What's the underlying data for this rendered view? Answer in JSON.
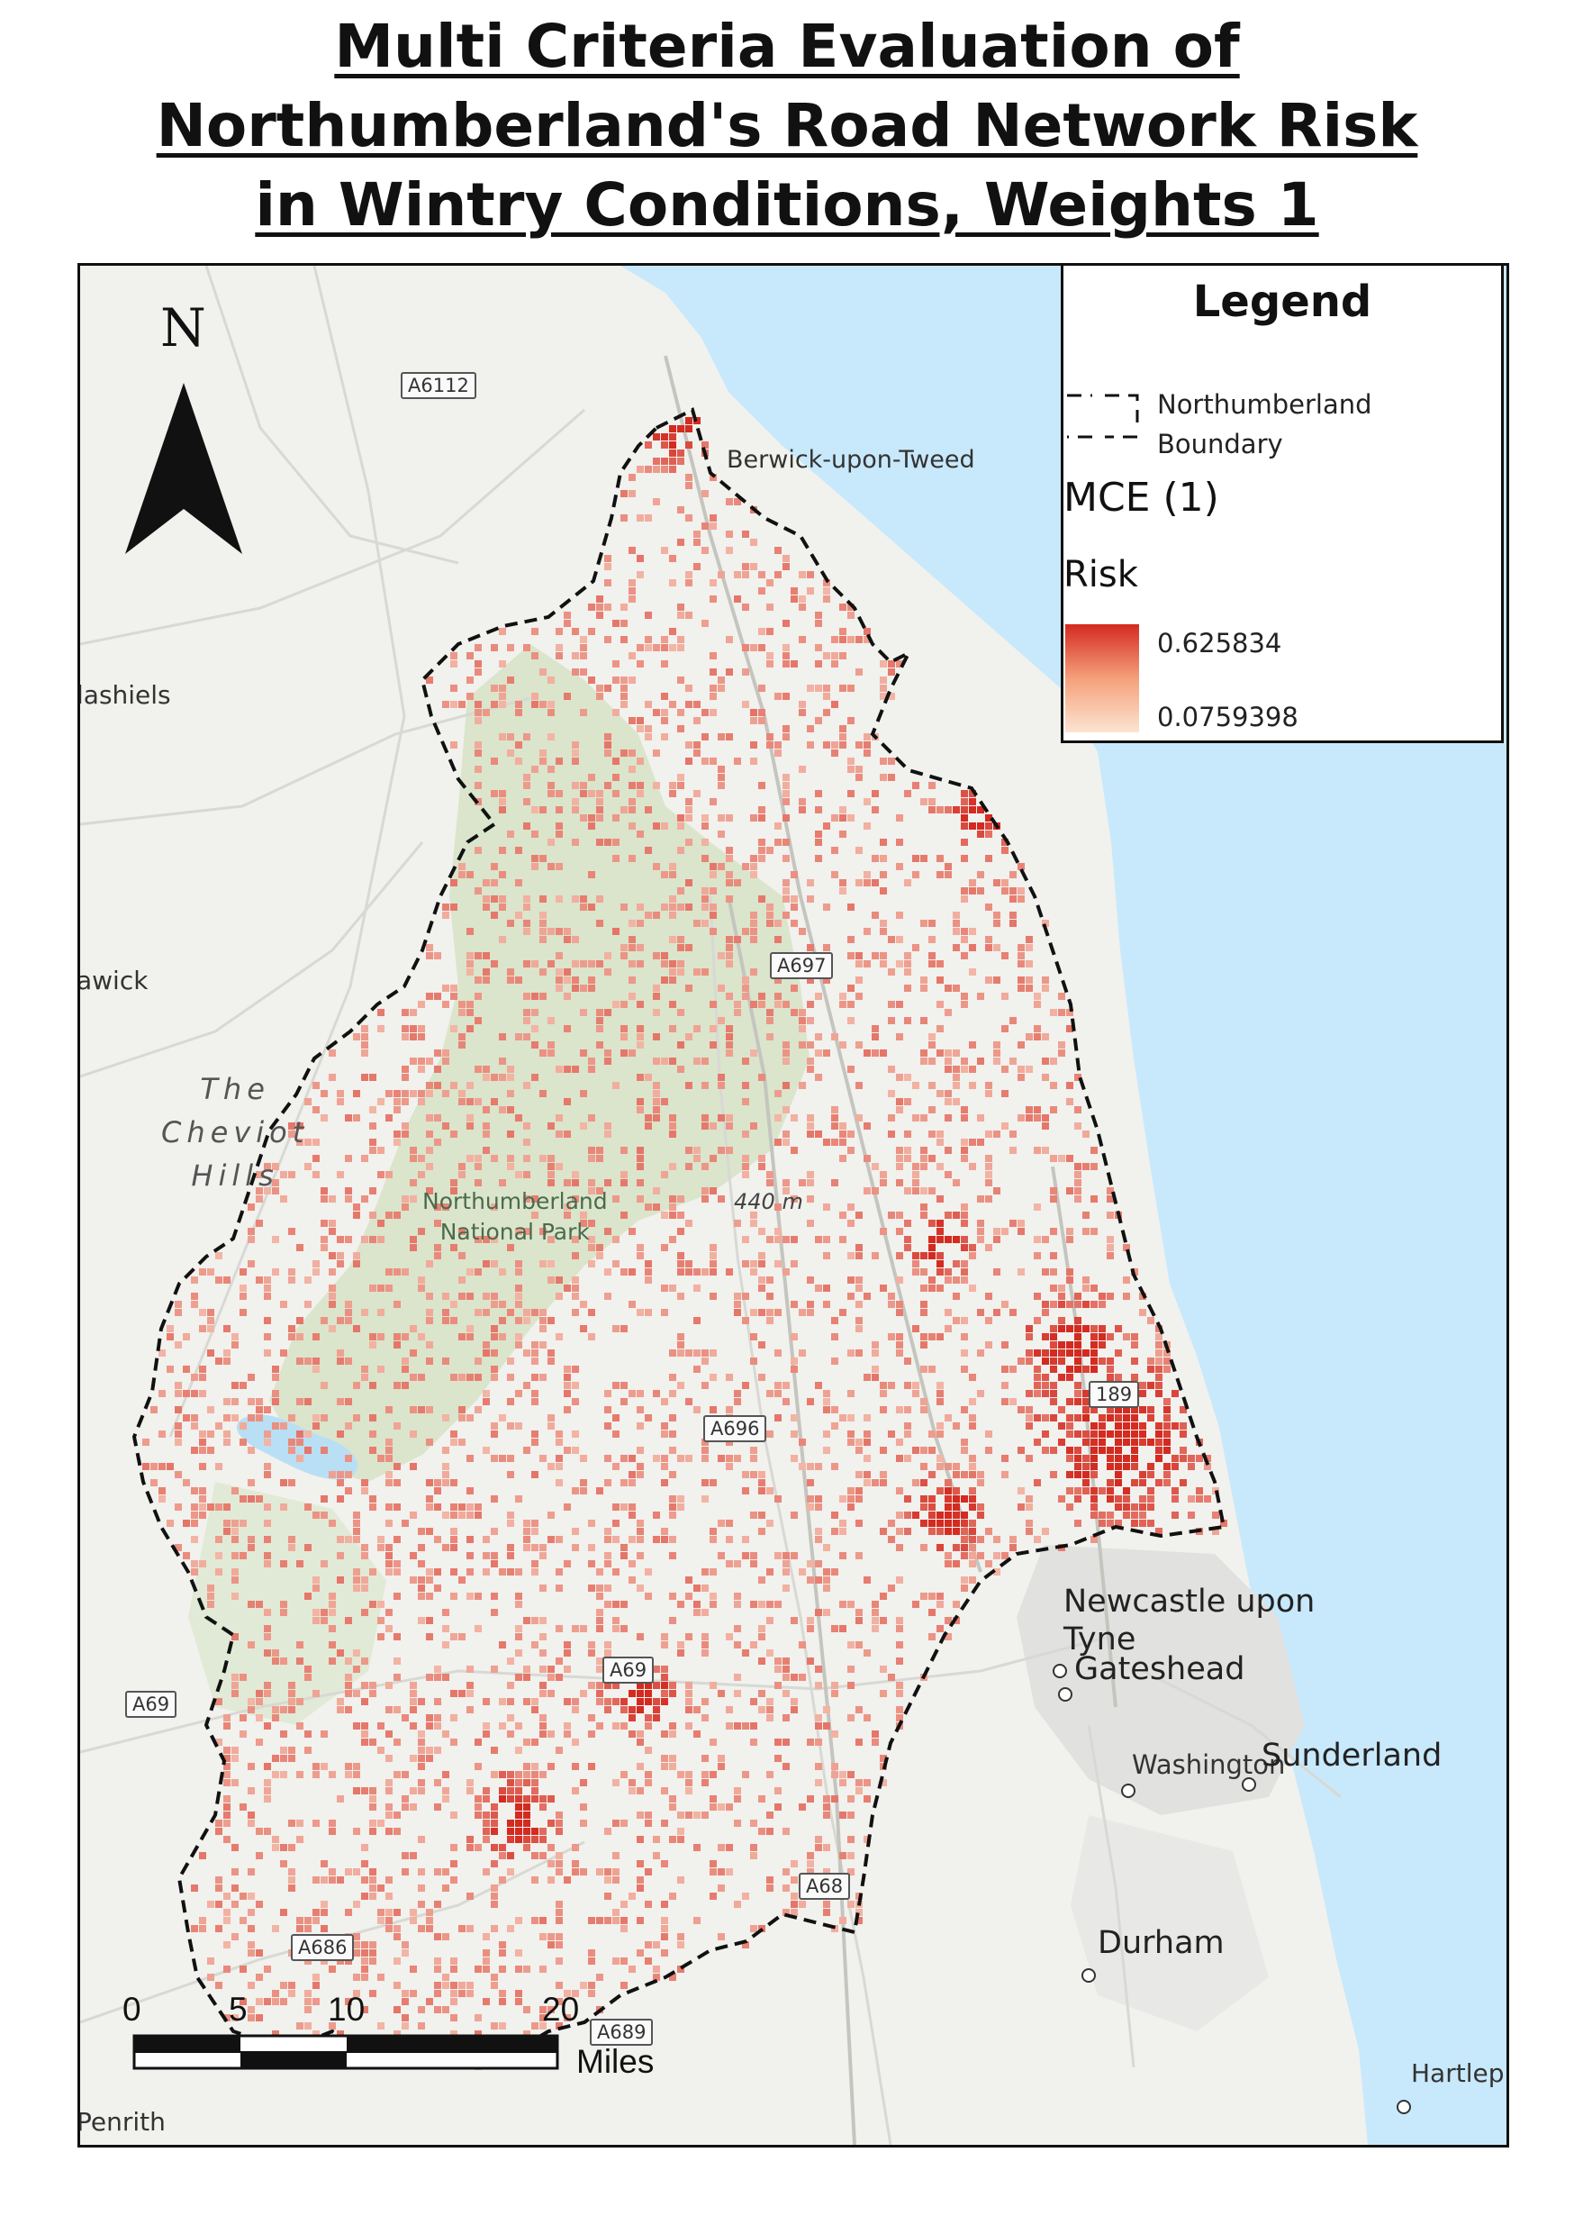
{
  "title": {
    "line1": "Multi Criteria Evaluation of",
    "line2": "Northumberland's Road Network Risk",
    "line3": "in Wintry Conditions, Weights 1"
  },
  "north_arrow": {
    "letter": "N"
  },
  "legend": {
    "title": "Legend",
    "boundary_label": "Northumberland Boundary",
    "layer_name": "MCE (1)",
    "field_name": "Risk",
    "max_value": "0.625834",
    "min_value": "0.0759398",
    "ramp_colors": [
      "#d42a20",
      "#fde4d2"
    ]
  },
  "places": {
    "berwick": "Berwick-upon-Tweed",
    "galashiels": "lashiels",
    "hawick": "awick",
    "cheviot_1": "The",
    "cheviot_2": "Cheviot",
    "cheviot_3": "Hills",
    "park_1": "Northumberland",
    "park_2": "National Park",
    "elevation": "440 m",
    "newcastle_1": "Newcastle upon",
    "newcastle_2": "Tyne",
    "gateshead": "Gateshead",
    "washington": "Washington",
    "sunderland": "Sunderland",
    "durham": "Durham",
    "hartlepool": "Hartlep",
    "penrith": "Penrith"
  },
  "road_shields": {
    "a6112": "A6112",
    "a697": "A697",
    "a696": "A696",
    "a189": "189",
    "a69_centre": "A69",
    "a69_west": "A69",
    "a68": "A68",
    "a686": "A686",
    "a689": "A689"
  },
  "scale": {
    "ticks": [
      "0",
      "5",
      "10",
      "20"
    ],
    "unit": "Miles"
  },
  "colors": {
    "sea": "#c8e9fb",
    "land": "#f1f1ee",
    "park": "#d6e3c6",
    "risk_high": "#d42a20",
    "risk_low": "#fde4d2",
    "boundary": "#111111"
  }
}
